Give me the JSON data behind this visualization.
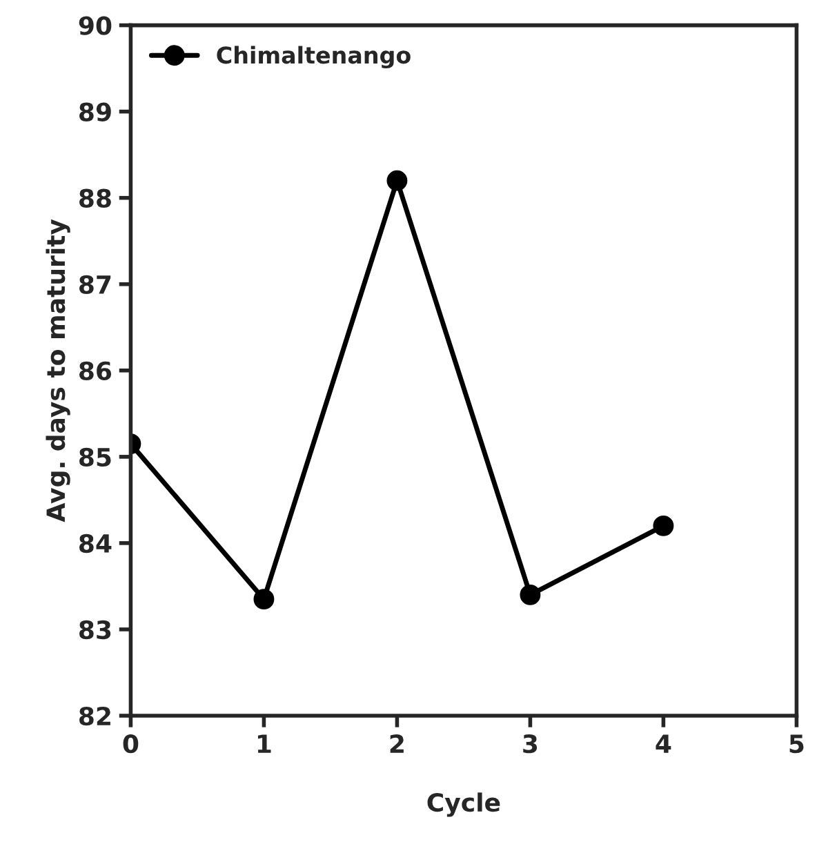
{
  "chart_data": {
    "type": "line",
    "xlabel": "Cycle",
    "ylabel": "Avg. days to maturity",
    "x": [
      0,
      1,
      2,
      3,
      4
    ],
    "series": [
      {
        "name": "Chimaltenango",
        "color": "#000000",
        "values": [
          85.15,
          83.35,
          88.2,
          83.4,
          84.2
        ]
      }
    ],
    "xlim": [
      0,
      5
    ],
    "xticks": [
      0,
      1,
      2,
      3,
      4,
      5
    ],
    "ylim": [
      82,
      90
    ],
    "yticks": [
      82,
      83,
      84,
      85,
      86,
      87,
      88,
      89,
      90
    ],
    "marker": "circle",
    "line_style": "solid",
    "legend": "top left",
    "grid": false
  }
}
